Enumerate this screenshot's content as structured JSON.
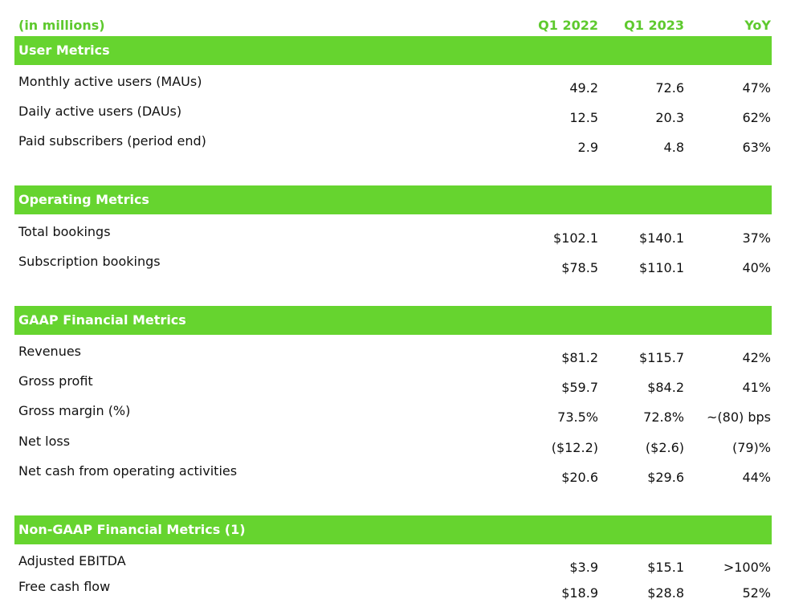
{
  "header": {
    "unit": "(in millions)",
    "col1": "Q1 2022",
    "col2": "Q1 2023",
    "col3": "YoY"
  },
  "sections": [
    {
      "title": "User Metrics",
      "rows": [
        {
          "label": "Monthly active users (MAUs)",
          "q1_2022": "49.2",
          "q1_2023": "72.6",
          "yoy": "47%"
        },
        {
          "label": "Daily active users (DAUs)",
          "q1_2022": "12.5",
          "q1_2023": "20.3",
          "yoy": "62%"
        },
        {
          "label": "Paid subscribers (period end)",
          "q1_2022": "2.9",
          "q1_2023": "4.8",
          "yoy": "63%"
        }
      ]
    },
    {
      "title": "Operating Metrics",
      "rows": [
        {
          "label": "Total bookings",
          "q1_2022": "$102.1",
          "q1_2023": "$140.1",
          "yoy": "37%"
        },
        {
          "label": "Subscription bookings",
          "q1_2022": "$78.5",
          "q1_2023": "$110.1",
          "yoy": "40%"
        }
      ]
    },
    {
      "title": "GAAP Financial Metrics",
      "rows": [
        {
          "label": "Revenues",
          "q1_2022": "$81.2",
          "q1_2023": "$115.7",
          "yoy": "42%"
        },
        {
          "label": "Gross profit",
          "q1_2022": "$59.7",
          "q1_2023": "$84.2",
          "yoy": "41%"
        },
        {
          "label": "Gross margin (%)",
          "q1_2022": "73.5%",
          "q1_2023": "72.8%",
          "yoy": "~(80) bps"
        },
        {
          "label": "Net loss",
          "q1_2022": "($12.2)",
          "q1_2023": "($2.6)",
          "yoy": "(79)%"
        },
        {
          "label": "Net cash from operating activities",
          "q1_2022": "$20.6",
          "q1_2023": "$29.6",
          "yoy": "44%"
        }
      ]
    },
    {
      "title": "Non-GAAP Financial Metrics (1)",
      "rows": [
        {
          "label": "Adjusted EBITDA",
          "q1_2022": "$3.9",
          "q1_2023": "$15.1",
          "yoy": ">100%"
        },
        {
          "label": "Free cash flow",
          "q1_2022": "$18.9",
          "q1_2023": "$28.8",
          "yoy": "52%"
        }
      ]
    }
  ],
  "colors": {
    "accent": "#66d42f",
    "header_text": "#5ec92e"
  }
}
